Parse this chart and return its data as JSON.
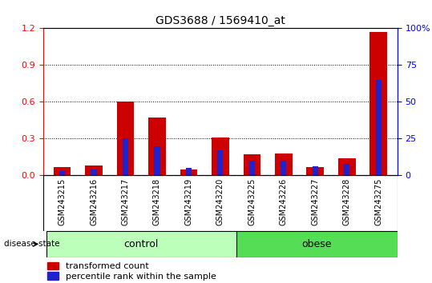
{
  "title": "GDS3688 / 1569410_at",
  "samples": [
    "GSM243215",
    "GSM243216",
    "GSM243217",
    "GSM243218",
    "GSM243219",
    "GSM243220",
    "GSM243225",
    "GSM243226",
    "GSM243227",
    "GSM243228",
    "GSM243275"
  ],
  "transformed_count": [
    0.07,
    0.08,
    0.6,
    0.47,
    0.05,
    0.31,
    0.17,
    0.18,
    0.07,
    0.14,
    1.17
  ],
  "percentile_rank": [
    3,
    4,
    25,
    20,
    5,
    17,
    10,
    10,
    6,
    8,
    65
  ],
  "control_count": 6,
  "obese_count": 5,
  "ylim_left": [
    0,
    1.2
  ],
  "ylim_right": [
    0,
    100
  ],
  "yticks_left": [
    0,
    0.3,
    0.6,
    0.9,
    1.2
  ],
  "yticks_right": [
    0,
    25,
    50,
    75,
    100
  ],
  "bar_color_red": "#CC0000",
  "bar_color_blue": "#2222CC",
  "red_bar_width": 0.55,
  "blue_bar_width": 0.18,
  "control_label": "control",
  "obese_label": "obese",
  "disease_state_label": "disease state",
  "legend_red": "transformed count",
  "legend_blue": "percentile rank within the sample",
  "control_color": "#BBFFBB",
  "obese_color": "#55DD55",
  "tick_bg_color": "#CCCCCC",
  "title_fontsize": 10,
  "tick_label_fontsize": 7
}
